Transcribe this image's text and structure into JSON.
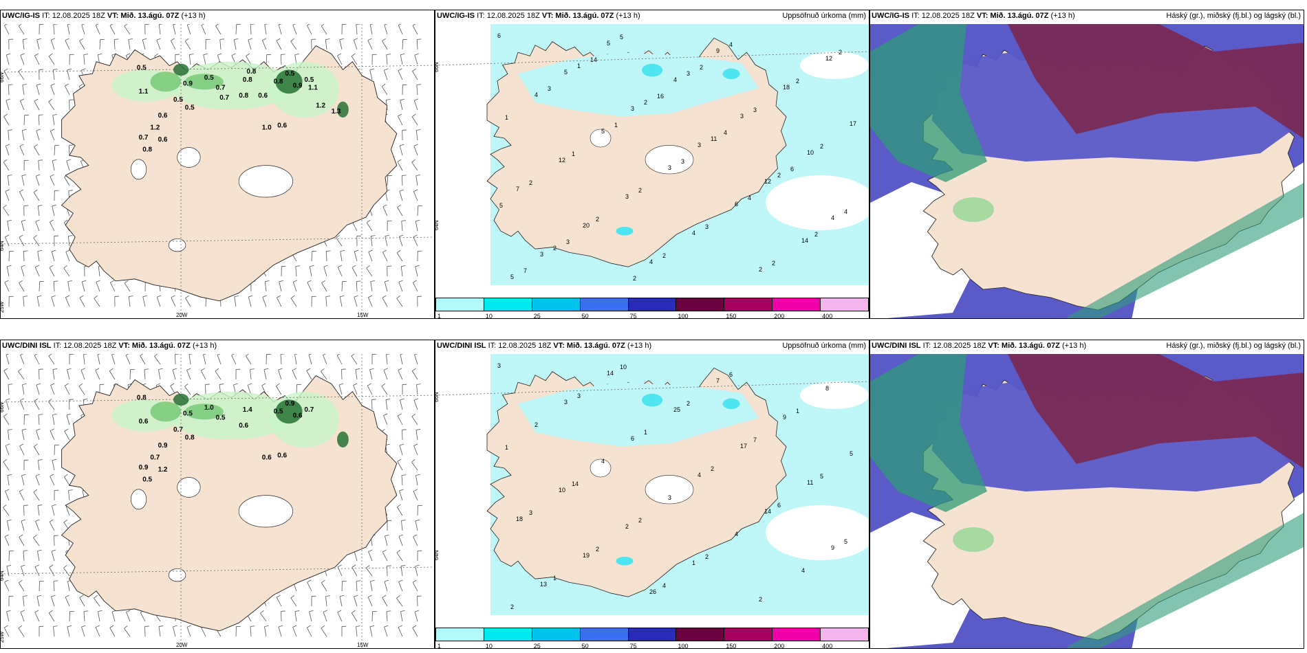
{
  "rows": [
    {
      "panels": [
        {
          "title_model": "UWC/IG-IS",
          "title_it": "IT: 12.08.2025 18Z",
          "title_vt": "VT: Mið. 13.ágú. 07Z",
          "title_lead": "(+13 h)",
          "right_label": "",
          "type": "wind"
        },
        {
          "title_model": "UWC/IG-IS",
          "title_it": "IT: 12.08.2025 18Z",
          "title_vt": "VT: Mið. 13.ágú. 07Z",
          "title_lead": "(+13 h)",
          "right_label": "Uppsöfnuð úrkoma (mm)",
          "type": "precip"
        },
        {
          "title_model": "UWC/IG-IS",
          "title_it": "IT: 12.08.2025 18Z",
          "title_vt": "VT: Mið. 13.ágú. 07Z",
          "title_lead": "(+13 h)",
          "right_label": "Háský (gr.), miðský (fj.bl.) og lágský (bl.)",
          "type": "cloud"
        }
      ]
    },
    {
      "panels": [
        {
          "title_model": "UWC/DINI ISL",
          "title_it": "IT: 12.08.2025 18Z",
          "title_vt": "VT: Mið. 13.ágú. 07Z",
          "title_lead": "(+13 h)",
          "right_label": "",
          "type": "wind"
        },
        {
          "title_model": "UWC/DINI ISL",
          "title_it": "IT: 12.08.2025 18Z",
          "title_vt": "VT: Mið. 13.ágú. 07Z",
          "title_lead": "(+13 h)",
          "right_label": "Uppsöfnuð úrkoma (mm)",
          "type": "precip"
        },
        {
          "title_model": "UWC/DINI ISL",
          "title_it": "IT: 12.08.2025 18Z",
          "title_vt": "VT: Mið. 13.ágú. 07Z",
          "title_lead": "(+13 h)",
          "right_label": "Háský (gr.), miðský (fj.bl.) og lágský (bl.)",
          "type": "cloud"
        }
      ]
    }
  ],
  "axis_labels": {
    "lat66": "66N",
    "lat64": "64N",
    "lat63": "63N",
    "lon20": "20W",
    "lon15": "15W",
    "lon25": "25W"
  },
  "colorbar": {
    "ticks": [
      "1",
      "10",
      "25",
      "50",
      "75",
      "100",
      "150",
      "200",
      "400"
    ],
    "colors": [
      "#b3fbfb",
      "#00e8f0",
      "#00c2ec",
      "#3a6ff0",
      "#2a2ab8",
      "#6a0040",
      "#a8005f",
      "#f000a8",
      "#f4b4ee"
    ]
  },
  "wind_values": {
    "top": [
      "0.5",
      "0.9",
      "0.5",
      "0.7",
      "0.8",
      "0.8",
      "0.5",
      "0.9",
      "0.5",
      "0.8",
      "1.1",
      "0.5",
      "0.5",
      "0.6",
      "1.2",
      "0.6",
      "0.8",
      "0.7",
      "1.0",
      "0.6",
      "1.2",
      "1.1",
      "0.6",
      "0.7",
      "0.8",
      "1.3"
    ],
    "bottom": [
      "0.8",
      "0.5",
      "1.0",
      "0.5",
      "0.6",
      "1.4",
      "0.9",
      "0.6",
      "0.7",
      "0.5",
      "0.6",
      "0.7",
      "0.8",
      "0.9",
      "0.7",
      "1.2",
      "0.5",
      "0.9",
      "0.6",
      "0.6"
    ]
  },
  "precip_values": {
    "top": [
      "6",
      "5",
      "3",
      "3",
      "12",
      "4",
      "3",
      "5",
      "4",
      "3",
      "10",
      "7",
      "20",
      "4",
      "9",
      "18",
      "17",
      "12",
      "3",
      "4",
      "2",
      "12",
      "4",
      "5",
      "3",
      "6",
      "14",
      "5",
      "1",
      "2",
      "11",
      "2",
      "4",
      "2",
      "5",
      "3",
      "3",
      "2",
      "2",
      "2",
      "2",
      "4",
      "2",
      "1",
      "1",
      "2",
      "3",
      "2",
      "2",
      "3",
      "1",
      "3",
      "4",
      "2",
      "7",
      "14",
      "16",
      "4",
      "6",
      "5",
      "3",
      "2",
      "2"
    ],
    "bottom": [
      "3",
      "3",
      "6",
      "4",
      "14",
      "9",
      "13",
      "14",
      "25",
      "17",
      "11",
      "18",
      "19",
      "26",
      "7",
      "9",
      "5",
      "10",
      "2",
      "1",
      "2",
      "8",
      "2",
      "4",
      "3",
      "4",
      "4",
      "2",
      "3",
      "1",
      "2",
      "6",
      "5",
      "1",
      "10",
      "2",
      "7",
      "5",
      "3",
      "2",
      "4",
      "6",
      "1",
      "1",
      "14",
      "2",
      "2"
    ]
  },
  "colors": {
    "land": "#f5e2d0",
    "sea": "#ffffff",
    "wind_green_light": "#c8f5c8",
    "wind_green": "#72c872",
    "wind_green_dark": "#1a6a2a",
    "precip_light": "#bff7f8",
    "precip_mid": "#4ee4f0",
    "cloud_low": "#5a5ac8",
    "cloud_mid": "#7a2a55",
    "cloud_high": "#2f9c7a"
  }
}
